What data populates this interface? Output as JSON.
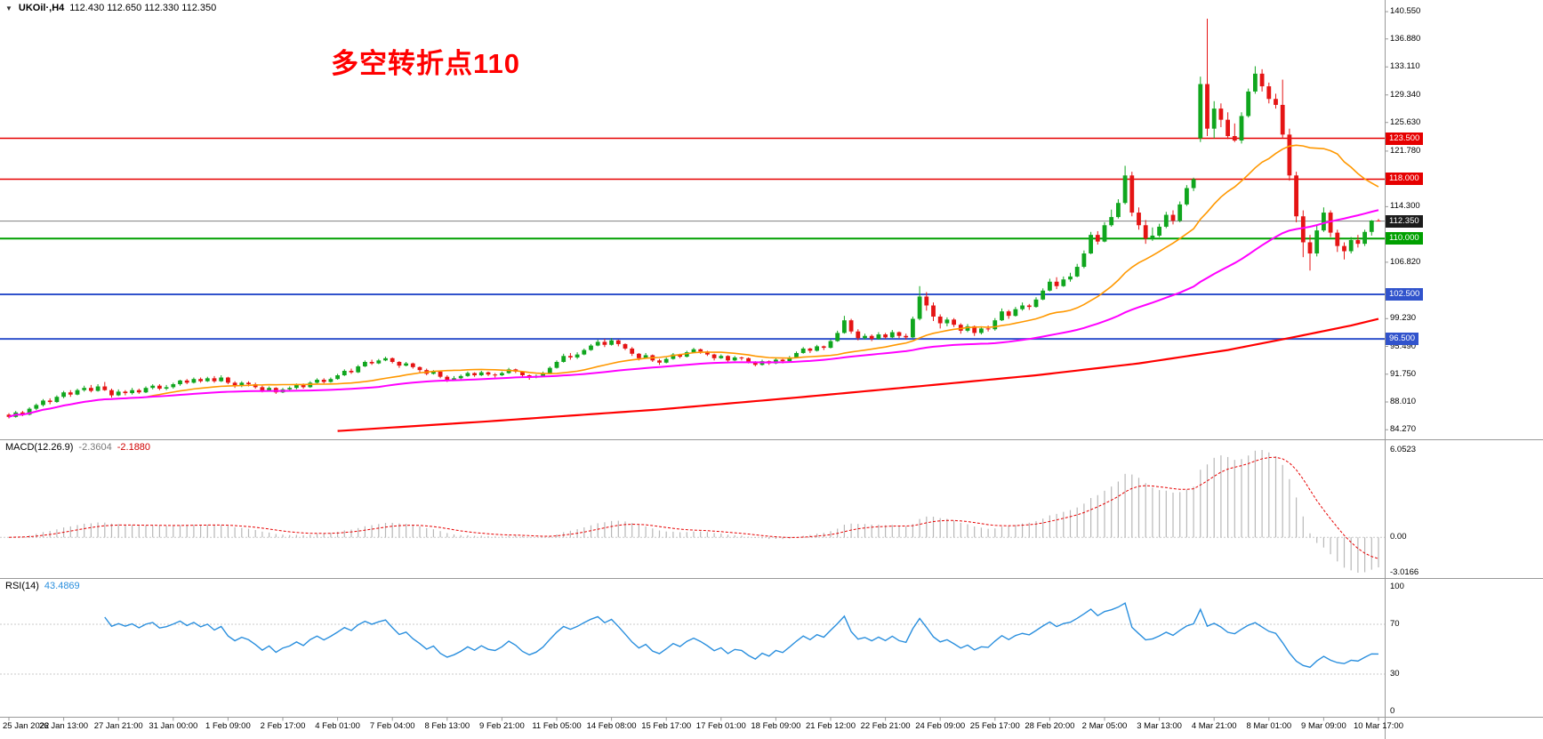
{
  "window": {
    "dropdown_icon": "▼",
    "symbol": "UKOil·,H4",
    "ohlc_text": "112.430 112.650 112.330 112.350"
  },
  "annotation": {
    "text": "多空转折点110",
    "color": "#ff0000"
  },
  "chart_data": {
    "type": "candlestick",
    "symbol": "UKOil",
    "timeframe": "H4",
    "title": "UKOil·,H4",
    "last_bar": {
      "open": 112.43,
      "high": 112.65,
      "low": 112.33,
      "close": 112.35
    },
    "up_color": "#10a61e",
    "down_color": "#e51414",
    "price_axis_labels": [
      "140.550",
      "136.880",
      "133.110",
      "129.340",
      "125.630",
      "121.780",
      "114.300",
      "106.820",
      "99.230",
      "95.490",
      "91.750",
      "88.010",
      "84.270"
    ],
    "time_labels": [
      "25 Jan 2022",
      "26 Jan 13:00",
      "27 Jan 21:00",
      "31 Jan 00:00",
      "1 Feb 09:00",
      "2 Feb 17:00",
      "4 Feb 01:00",
      "7 Feb 04:00",
      "8 Feb 13:00",
      "9 Feb 21:00",
      "11 Feb 05:00",
      "14 Feb 08:00",
      "15 Feb 17:00",
      "17 Feb 01:00",
      "18 Feb 09:00",
      "21 Feb 12:00",
      "22 Feb 21:00",
      "24 Feb 09:00",
      "25 Feb 17:00",
      "28 Feb 20:00",
      "2 Mar 05:00",
      "3 Mar 13:00",
      "4 Mar 21:00",
      "8 Mar 01:00",
      "9 Mar 09:00",
      "10 Mar 17:00"
    ],
    "levels": [
      {
        "price": 123.5,
        "label": "123.500",
        "color": "#e60000",
        "width": 1.5,
        "tag_bg": "#e60000"
      },
      {
        "price": 118.0,
        "label": "118.000",
        "color": "#e60000",
        "width": 1.5,
        "tag_bg": "#e60000"
      },
      {
        "price": 110.0,
        "label": "110.000",
        "color": "#00a000",
        "width": 2,
        "tag_bg": "#00a000"
      },
      {
        "price": 102.5,
        "label": "102.500",
        "color": "#3153cc",
        "width": 2,
        "tag_bg": "#3153cc"
      },
      {
        "price": 96.5,
        "label": "96.500",
        "color": "#3153cc",
        "width": 2,
        "tag_bg": "#3153cc"
      }
    ],
    "current_price": {
      "value": 112.35,
      "label": "112.350",
      "line_color": "#808080",
      "tag_bg": "#1c1c1c"
    },
    "moving_averages": {
      "fast": {
        "name": "fast-ma",
        "color": "#ff9800",
        "period": 21
      },
      "mid": {
        "name": "mid-ma",
        "color": "#ff00ff",
        "period": 55
      },
      "slow": {
        "name": "slow-ma",
        "color": "#ff0000",
        "anchors": [
          [
            48,
            84.1
          ],
          [
            70,
            85.4
          ],
          [
            95,
            87.0
          ],
          [
            115,
            88.6
          ],
          [
            135,
            90.3
          ],
          [
            150,
            91.6
          ],
          [
            165,
            93.2
          ],
          [
            178,
            95.0
          ],
          [
            188,
            96.8
          ],
          [
            196,
            98.3
          ],
          [
            200,
            99.2
          ]
        ]
      }
    },
    "macd": {
      "title": "MACD(12.26.9)",
      "value_main": "-2.3604",
      "value_signal": "-2.1880",
      "axis_labels": [
        "6.0523",
        "0.00",
        "-3.0166"
      ],
      "histogram_color": "#b8b8b8",
      "signal_color": "#e60000"
    },
    "rsi": {
      "title": "RSI(14)",
      "value": "43.4869",
      "axis_labels": [
        "100",
        "70",
        "30",
        "0"
      ],
      "level_lines": [
        70,
        30
      ],
      "line_color": "#2a8fde"
    },
    "candles_ohlc": [
      [
        86.3,
        86.5,
        85.8,
        86.0
      ],
      [
        86.0,
        86.8,
        85.9,
        86.6
      ],
      [
        86.6,
        86.8,
        86.1,
        86.3
      ],
      [
        86.3,
        87.3,
        86.2,
        87.1
      ],
      [
        87.1,
        87.8,
        86.9,
        87.6
      ],
      [
        87.6,
        88.4,
        87.4,
        88.2
      ],
      [
        88.2,
        88.5,
        87.7,
        88.0
      ],
      [
        88.0,
        88.9,
        87.9,
        88.7
      ],
      [
        88.7,
        89.5,
        88.5,
        89.3
      ],
      [
        89.3,
        89.6,
        88.7,
        89.0
      ],
      [
        89.0,
        89.8,
        88.9,
        89.6
      ],
      [
        89.6,
        90.2,
        89.4,
        89.9
      ],
      [
        89.9,
        90.3,
        89.3,
        89.5
      ],
      [
        89.5,
        90.4,
        89.4,
        90.1
      ],
      [
        90.1,
        90.7,
        89.5,
        89.6
      ],
      [
        89.6,
        89.8,
        88.6,
        88.9
      ],
      [
        88.9,
        89.7,
        88.8,
        89.4
      ],
      [
        89.4,
        89.6,
        88.9,
        89.2
      ],
      [
        89.2,
        89.9,
        89.0,
        89.6
      ],
      [
        89.6,
        89.8,
        89.1,
        89.3
      ],
      [
        89.3,
        90.1,
        89.2,
        89.9
      ],
      [
        89.9,
        90.4,
        89.7,
        90.2
      ],
      [
        90.2,
        90.4,
        89.6,
        89.8
      ],
      [
        89.8,
        90.3,
        89.6,
        90.0
      ],
      [
        90.0,
        90.6,
        89.8,
        90.4
      ],
      [
        90.4,
        91.0,
        90.2,
        90.9
      ],
      [
        90.9,
        91.1,
        90.4,
        90.6
      ],
      [
        90.6,
        91.3,
        90.5,
        91.1
      ],
      [
        91.1,
        91.3,
        90.6,
        90.8
      ],
      [
        90.8,
        91.4,
        90.7,
        91.2
      ],
      [
        91.2,
        91.5,
        90.6,
        90.8
      ],
      [
        90.8,
        91.6,
        90.7,
        91.3
      ],
      [
        91.3,
        91.4,
        90.4,
        90.6
      ],
      [
        90.6,
        90.8,
        89.9,
        90.2
      ],
      [
        90.2,
        90.8,
        90.0,
        90.6
      ],
      [
        90.6,
        90.8,
        90.1,
        90.4
      ],
      [
        90.4,
        90.6,
        89.8,
        90.0
      ],
      [
        90.0,
        90.2,
        89.3,
        89.5
      ],
      [
        89.5,
        90.1,
        89.4,
        89.9
      ],
      [
        89.9,
        90.0,
        89.1,
        89.3
      ],
      [
        89.3,
        89.9,
        89.2,
        89.7
      ],
      [
        89.7,
        90.1,
        89.5,
        89.9
      ],
      [
        89.9,
        90.5,
        89.7,
        90.3
      ],
      [
        90.3,
        90.5,
        89.8,
        90.0
      ],
      [
        90.0,
        90.8,
        89.9,
        90.6
      ],
      [
        90.6,
        91.2,
        90.5,
        91.0
      ],
      [
        91.0,
        91.2,
        90.5,
        90.7
      ],
      [
        90.7,
        91.3,
        90.6,
        91.1
      ],
      [
        91.1,
        91.8,
        91.0,
        91.6
      ],
      [
        91.6,
        92.4,
        91.5,
        92.2
      ],
      [
        92.2,
        92.5,
        91.8,
        92.0
      ],
      [
        92.0,
        93.0,
        91.9,
        92.8
      ],
      [
        92.8,
        93.6,
        92.7,
        93.4
      ],
      [
        93.4,
        93.7,
        93.0,
        93.2
      ],
      [
        93.2,
        93.8,
        93.1,
        93.6
      ],
      [
        93.6,
        94.1,
        93.5,
        93.9
      ],
      [
        93.9,
        94.0,
        93.2,
        93.4
      ],
      [
        93.4,
        93.5,
        92.6,
        92.9
      ],
      [
        92.9,
        93.4,
        92.8,
        93.2
      ],
      [
        93.2,
        93.3,
        92.5,
        92.7
      ],
      [
        92.7,
        92.8,
        92.0,
        92.3
      ],
      [
        92.3,
        92.5,
        91.6,
        91.8
      ],
      [
        91.8,
        92.3,
        91.7,
        92.1
      ],
      [
        92.1,
        92.2,
        91.2,
        91.4
      ],
      [
        91.4,
        91.6,
        90.7,
        91.0
      ],
      [
        91.0,
        91.5,
        90.9,
        91.2
      ],
      [
        91.2,
        91.7,
        91.0,
        91.5
      ],
      [
        91.5,
        92.1,
        91.4,
        91.9
      ],
      [
        91.9,
        92.0,
        91.4,
        91.6
      ],
      [
        91.6,
        92.2,
        91.5,
        92.0
      ],
      [
        92.0,
        92.1,
        91.5,
        91.7
      ],
      [
        91.7,
        91.9,
        91.3,
        91.6
      ],
      [
        91.6,
        92.1,
        91.5,
        91.9
      ],
      [
        91.9,
        92.6,
        91.8,
        92.4
      ],
      [
        92.4,
        92.5,
        91.9,
        92.1
      ],
      [
        92.1,
        92.2,
        91.4,
        91.6
      ],
      [
        91.6,
        91.7,
        91.0,
        91.3
      ],
      [
        91.3,
        91.7,
        91.2,
        91.5
      ],
      [
        91.5,
        92.1,
        91.4,
        91.9
      ],
      [
        91.9,
        92.8,
        91.8,
        92.6
      ],
      [
        92.6,
        93.6,
        92.5,
        93.4
      ],
      [
        93.4,
        94.5,
        93.3,
        94.2
      ],
      [
        94.2,
        94.6,
        93.7,
        94.0
      ],
      [
        94.0,
        94.7,
        93.8,
        94.4
      ],
      [
        94.4,
        95.2,
        94.3,
        95.0
      ],
      [
        95.0,
        95.8,
        94.9,
        95.6
      ],
      [
        95.6,
        96.4,
        95.5,
        96.1
      ],
      [
        96.1,
        96.5,
        95.4,
        95.7
      ],
      [
        95.7,
        96.6,
        95.6,
        96.3
      ],
      [
        96.3,
        96.4,
        95.5,
        95.8
      ],
      [
        95.8,
        95.9,
        95.0,
        95.2
      ],
      [
        95.2,
        95.4,
        94.2,
        94.5
      ],
      [
        94.5,
        94.6,
        93.6,
        93.9
      ],
      [
        93.9,
        94.6,
        93.8,
        94.3
      ],
      [
        94.3,
        94.4,
        93.4,
        93.6
      ],
      [
        93.6,
        93.8,
        93.0,
        93.3
      ],
      [
        93.3,
        94.0,
        93.2,
        93.8
      ],
      [
        93.8,
        94.6,
        93.7,
        94.4
      ],
      [
        94.4,
        94.5,
        93.9,
        94.1
      ],
      [
        94.1,
        94.9,
        94.0,
        94.7
      ],
      [
        94.7,
        95.3,
        94.6,
        95.1
      ],
      [
        95.1,
        95.2,
        94.5,
        94.8
      ],
      [
        94.8,
        94.9,
        94.2,
        94.4
      ],
      [
        94.4,
        94.5,
        93.6,
        93.9
      ],
      [
        93.9,
        94.4,
        93.8,
        94.2
      ],
      [
        94.2,
        94.3,
        93.3,
        93.6
      ],
      [
        93.6,
        94.2,
        93.5,
        94.0
      ],
      [
        94.0,
        94.1,
        93.6,
        93.9
      ],
      [
        93.9,
        94.0,
        93.2,
        93.4
      ],
      [
        93.4,
        93.5,
        92.8,
        93.0
      ],
      [
        93.0,
        93.7,
        92.9,
        93.5
      ],
      [
        93.5,
        93.6,
        93.0,
        93.2
      ],
      [
        93.2,
        93.9,
        93.1,
        93.7
      ],
      [
        93.7,
        93.8,
        93.2,
        93.5
      ],
      [
        93.5,
        94.2,
        93.4,
        94.0
      ],
      [
        94.0,
        94.8,
        93.9,
        94.6
      ],
      [
        94.6,
        95.4,
        94.5,
        95.2
      ],
      [
        95.2,
        95.3,
        94.6,
        94.9
      ],
      [
        94.9,
        95.7,
        94.8,
        95.5
      ],
      [
        95.5,
        95.6,
        95.0,
        95.3
      ],
      [
        95.3,
        96.4,
        95.2,
        96.2
      ],
      [
        96.2,
        97.6,
        96.1,
        97.3
      ],
      [
        97.3,
        99.6,
        97.2,
        99.0
      ],
      [
        99.0,
        99.2,
        97.2,
        97.5
      ],
      [
        97.5,
        97.8,
        96.3,
        96.6
      ],
      [
        96.6,
        97.2,
        96.4,
        96.9
      ],
      [
        96.9,
        97.1,
        96.2,
        96.5
      ],
      [
        96.5,
        97.4,
        96.4,
        97.1
      ],
      [
        97.1,
        97.3,
        96.5,
        96.7
      ],
      [
        96.7,
        97.7,
        96.6,
        97.4
      ],
      [
        97.4,
        97.5,
        96.6,
        96.9
      ],
      [
        96.9,
        97.2,
        96.4,
        96.7
      ],
      [
        96.7,
        99.5,
        96.6,
        99.2
      ],
      [
        99.2,
        103.6,
        99.0,
        102.2
      ],
      [
        102.2,
        102.8,
        100.3,
        101.0
      ],
      [
        101.0,
        101.4,
        98.9,
        99.5
      ],
      [
        99.5,
        99.8,
        97.9,
        98.6
      ],
      [
        98.6,
        99.4,
        98.2,
        99.1
      ],
      [
        99.1,
        99.3,
        98.1,
        98.4
      ],
      [
        98.4,
        98.6,
        97.2,
        97.6
      ],
      [
        97.6,
        98.5,
        97.4,
        98.2
      ],
      [
        98.2,
        98.3,
        96.9,
        97.3
      ],
      [
        97.3,
        98.2,
        97.1,
        97.9
      ],
      [
        97.9,
        98.3,
        97.5,
        97.8
      ],
      [
        97.8,
        99.3,
        97.6,
        99.0
      ],
      [
        99.0,
        100.6,
        98.9,
        100.2
      ],
      [
        100.2,
        100.4,
        99.2,
        99.6
      ],
      [
        99.6,
        100.8,
        99.5,
        100.5
      ],
      [
        100.5,
        101.4,
        100.3,
        101.0
      ],
      [
        101.0,
        101.2,
        100.4,
        100.8
      ],
      [
        100.8,
        102.1,
        100.7,
        101.8
      ],
      [
        101.8,
        103.3,
        101.7,
        103.0
      ],
      [
        103.0,
        104.6,
        102.9,
        104.2
      ],
      [
        104.2,
        104.8,
        103.2,
        103.6
      ],
      [
        103.6,
        104.9,
        103.5,
        104.5
      ],
      [
        104.5,
        105.4,
        104.2,
        104.9
      ],
      [
        104.9,
        106.6,
        104.8,
        106.2
      ],
      [
        106.2,
        108.4,
        106.0,
        108.0
      ],
      [
        108.0,
        110.9,
        107.9,
        110.5
      ],
      [
        110.5,
        111.0,
        109.2,
        109.6
      ],
      [
        109.6,
        112.2,
        109.5,
        111.8
      ],
      [
        111.8,
        113.9,
        111.6,
        112.9
      ],
      [
        112.9,
        115.3,
        112.7,
        114.8
      ],
      [
        114.8,
        119.8,
        114.6,
        118.5
      ],
      [
        118.5,
        119.0,
        113.0,
        113.5
      ],
      [
        113.5,
        114.2,
        111.2,
        111.8
      ],
      [
        111.8,
        112.5,
        109.3,
        110.0
      ],
      [
        110.0,
        111.5,
        109.7,
        110.4
      ],
      [
        110.4,
        112.0,
        110.2,
        111.6
      ],
      [
        111.6,
        113.6,
        111.4,
        113.2
      ],
      [
        113.2,
        113.8,
        111.9,
        112.4
      ],
      [
        112.4,
        115.0,
        112.2,
        114.6
      ],
      [
        114.6,
        117.2,
        114.4,
        116.8
      ],
      [
        116.8,
        118.2,
        116.4,
        118.0
      ],
      [
        123.5,
        131.8,
        123.0,
        130.8
      ],
      [
        130.8,
        139.6,
        123.8,
        124.8
      ],
      [
        124.8,
        128.5,
        123.5,
        127.5
      ],
      [
        127.5,
        128.2,
        125.0,
        126.0
      ],
      [
        126.0,
        127.0,
        123.4,
        123.8
      ],
      [
        123.8,
        125.5,
        123.0,
        123.2
      ],
      [
        123.2,
        127.0,
        122.8,
        126.5
      ],
      [
        126.5,
        130.2,
        126.3,
        129.8
      ],
      [
        129.8,
        133.2,
        129.5,
        132.2
      ],
      [
        132.2,
        132.8,
        129.8,
        130.5
      ],
      [
        130.5,
        131.0,
        128.2,
        128.8
      ],
      [
        128.8,
        129.5,
        127.5,
        128.0
      ],
      [
        128.0,
        131.4,
        123.5,
        124.0
      ],
      [
        124.0,
        124.8,
        117.8,
        118.5
      ],
      [
        118.5,
        119.0,
        112.2,
        113.0
      ],
      [
        113.0,
        113.8,
        107.5,
        109.5
      ],
      [
        109.5,
        110.5,
        105.7,
        108.0
      ],
      [
        108.0,
        111.8,
        107.6,
        111.1
      ],
      [
        111.1,
        114.2,
        110.9,
        113.5
      ],
      [
        113.5,
        113.8,
        110.2,
        110.8
      ],
      [
        110.8,
        111.2,
        108.2,
        109.0
      ],
      [
        109.0,
        109.5,
        107.2,
        108.3
      ],
      [
        108.3,
        110.2,
        108.0,
        109.8
      ],
      [
        109.8,
        110.5,
        108.8,
        109.3
      ],
      [
        109.3,
        111.2,
        109.0,
        110.9
      ],
      [
        110.9,
        112.5,
        110.4,
        112.43
      ],
      [
        112.43,
        112.65,
        112.33,
        112.35
      ]
    ]
  }
}
